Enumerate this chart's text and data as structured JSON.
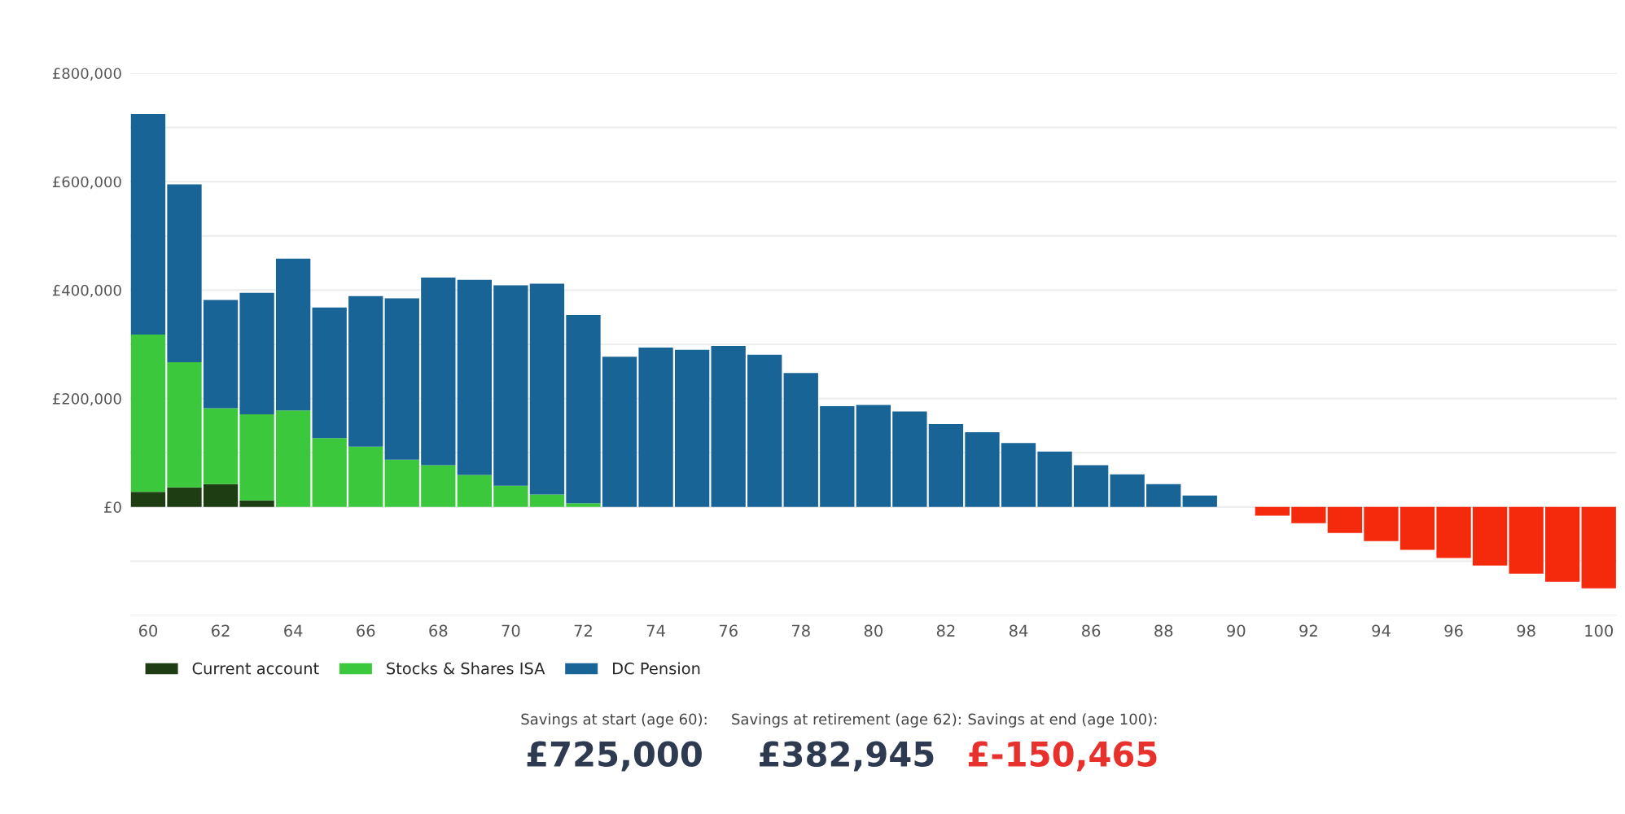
{
  "chart_data": {
    "type": "bar",
    "stacked": true,
    "categories": [
      "60",
      null,
      "62",
      null,
      "64",
      null,
      "66",
      null,
      "68",
      null,
      "70",
      null,
      "72",
      null,
      "74",
      null,
      "76",
      null,
      "78",
      null,
      "80",
      null,
      "82",
      null,
      "84",
      null,
      "86",
      null,
      "88",
      null,
      "90",
      null,
      "92",
      null,
      "94",
      null,
      "96",
      null,
      "98",
      null,
      "100"
    ],
    "series": [
      {
        "name": "Current account",
        "color": "#1e3d12",
        "values": [
          28000,
          36000,
          42000,
          12000,
          0,
          0,
          0,
          0,
          0,
          0,
          0,
          0,
          0,
          0,
          0,
          0,
          0,
          0,
          0,
          0,
          0,
          0,
          0,
          0,
          0,
          0,
          0,
          0,
          0,
          0,
          0,
          0,
          0,
          0,
          0,
          0,
          0,
          0,
          0,
          0,
          0
        ]
      },
      {
        "name": "Stocks & Shares ISA",
        "color": "#3cc83c",
        "values": [
          290000,
          231000,
          140000,
          159000,
          178000,
          127000,
          111000,
          87000,
          77000,
          59000,
          39000,
          23000,
          7000,
          0,
          0,
          0,
          0,
          0,
          0,
          0,
          0,
          0,
          0,
          0,
          0,
          0,
          0,
          0,
          0,
          0,
          0,
          0,
          0,
          0,
          0,
          0,
          0,
          0,
          0,
          0,
          0
        ]
      },
      {
        "name": "DC Pension",
        "color": "#196496",
        "values": [
          407000,
          328000,
          200000,
          224000,
          280000,
          241000,
          278000,
          298000,
          346000,
          360000,
          370000,
          389000,
          347000,
          277000,
          294000,
          290000,
          297000,
          281000,
          247000,
          186000,
          188000,
          176000,
          153000,
          138000,
          118000,
          102000,
          77000,
          60000,
          42000,
          21000,
          0,
          0,
          0,
          0,
          0,
          0,
          0,
          0,
          0,
          0,
          0
        ]
      },
      {
        "color": "#f52a0c",
        "values": [
          0,
          0,
          0,
          0,
          0,
          0,
          0,
          0,
          0,
          0,
          0,
          0,
          0,
          0,
          0,
          0,
          0,
          0,
          0,
          0,
          0,
          0,
          0,
          0,
          0,
          0,
          0,
          0,
          0,
          0,
          0,
          -16000,
          -30000,
          -48000,
          -63000,
          -79000,
          -94000,
          -108000,
          -123000,
          -138000,
          -150000
        ]
      }
    ],
    "ylim": [
      -200000,
      800000
    ],
    "yticks": [
      {
        "value": -200000,
        "label": null
      },
      {
        "value": -100000,
        "label": null
      },
      {
        "value": 0,
        "label": "£0"
      },
      {
        "value": 100000,
        "label": null
      },
      {
        "value": 200000,
        "label": "£200,000"
      },
      {
        "value": 300000,
        "label": null
      },
      {
        "value": 400000,
        "label": "£400,000"
      },
      {
        "value": 500000,
        "label": null
      },
      {
        "value": 600000,
        "label": "£600,000"
      },
      {
        "value": 700000,
        "label": null
      },
      {
        "value": 800000,
        "label": "£800,000"
      }
    ],
    "grid": "y",
    "legend": "bottom",
    "annotations": [
      "Savings at start (age 60):",
      "£725,000",
      "Savings at retirement (age 62):",
      "£382,945",
      "Savings at end (age 100):",
      "£-150,465"
    ]
  }
}
